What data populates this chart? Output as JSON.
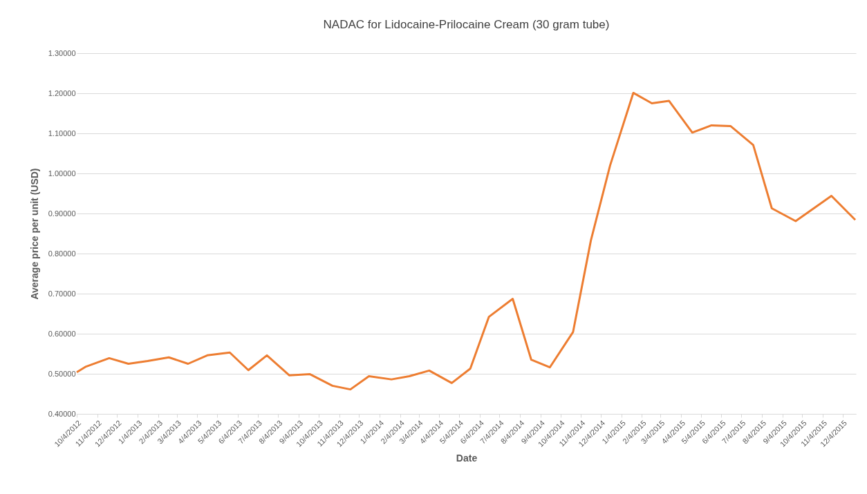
{
  "chart_data": {
    "type": "line",
    "title": "NADAC for Lidocaine-Prilocaine Cream (30 gram tube)",
    "xlabel": "Date",
    "ylabel": "Average price per unit (USD)",
    "x": [
      "2012-10-04",
      "2012-10-18",
      "2012-11-22",
      "2012-12-21",
      "2013-01-19",
      "2013-02-20",
      "2013-03-21",
      "2013-04-19",
      "2013-05-23",
      "2013-06-20",
      "2013-07-18",
      "2013-08-21",
      "2013-09-21",
      "2013-10-25",
      "2013-11-21",
      "2013-12-19",
      "2014-01-22",
      "2014-02-18",
      "2014-03-20",
      "2014-04-23",
      "2014-05-21",
      "2014-06-18",
      "2014-07-24",
      "2014-08-21",
      "2014-09-18",
      "2014-10-23",
      "2014-11-19",
      "2014-12-18",
      "2015-01-22",
      "2015-02-19",
      "2015-03-17",
      "2015-04-21",
      "2015-05-20",
      "2015-06-18",
      "2015-07-22",
      "2015-08-19",
      "2015-09-24",
      "2015-11-17",
      "2015-12-23"
    ],
    "series": [
      {
        "color": "#ed7d31",
        "values": [
          0.504,
          0.518,
          0.539,
          0.525,
          0.532,
          0.541,
          0.525,
          0.546,
          0.553,
          0.509,
          0.546,
          0.496,
          0.499,
          0.47,
          0.461,
          0.494,
          0.486,
          0.494,
          0.508,
          0.477,
          0.513,
          0.642,
          0.687,
          0.535,
          0.516,
          0.604,
          0.833,
          1.02,
          1.201,
          1.175,
          1.181,
          1.102,
          1.12,
          1.118,
          1.071,
          0.913,
          0.881,
          0.944,
          0.884
        ]
      }
    ],
    "xlim": [
      "2012-10-04",
      "2015-12-24"
    ],
    "xticks": [
      {
        "value": "2012-10-04",
        "label": "10/4/2012"
      },
      {
        "value": "2012-11-04",
        "label": "11/4/2012"
      },
      {
        "value": "2012-12-04",
        "label": "12/4/2012"
      },
      {
        "value": "2013-01-04",
        "label": "1/4/2013"
      },
      {
        "value": "2013-02-04",
        "label": "2/4/2013"
      },
      {
        "value": "2013-03-04",
        "label": "3/4/2013"
      },
      {
        "value": "2013-04-04",
        "label": "4/4/2013"
      },
      {
        "value": "2013-05-04",
        "label": "5/4/2013"
      },
      {
        "value": "2013-06-04",
        "label": "6/4/2013"
      },
      {
        "value": "2013-07-04",
        "label": "7/4/2013"
      },
      {
        "value": "2013-08-04",
        "label": "8/4/2013"
      },
      {
        "value": "2013-09-04",
        "label": "9/4/2013"
      },
      {
        "value": "2013-10-04",
        "label": "10/4/2013"
      },
      {
        "value": "2013-11-04",
        "label": "11/4/2013"
      },
      {
        "value": "2013-12-04",
        "label": "12/4/2013"
      },
      {
        "value": "2014-01-04",
        "label": "1/4/2014"
      },
      {
        "value": "2014-02-04",
        "label": "2/4/2014"
      },
      {
        "value": "2014-03-04",
        "label": "3/4/2014"
      },
      {
        "value": "2014-04-04",
        "label": "4/4/2014"
      },
      {
        "value": "2014-05-04",
        "label": "5/4/2014"
      },
      {
        "value": "2014-06-04",
        "label": "6/4/2014"
      },
      {
        "value": "2014-07-04",
        "label": "7/4/2014"
      },
      {
        "value": "2014-08-04",
        "label": "8/4/2014"
      },
      {
        "value": "2014-09-04",
        "label": "9/4/2014"
      },
      {
        "value": "2014-10-04",
        "label": "10/4/2014"
      },
      {
        "value": "2014-11-04",
        "label": "11/4/2014"
      },
      {
        "value": "2014-12-04",
        "label": "12/4/2014"
      },
      {
        "value": "2015-01-04",
        "label": "1/4/2015"
      },
      {
        "value": "2015-02-04",
        "label": "2/4/2015"
      },
      {
        "value": "2015-03-04",
        "label": "3/4/2015"
      },
      {
        "value": "2015-04-04",
        "label": "4/4/2015"
      },
      {
        "value": "2015-05-04",
        "label": "5/4/2015"
      },
      {
        "value": "2015-06-04",
        "label": "6/4/2015"
      },
      {
        "value": "2015-07-04",
        "label": "7/4/2015"
      },
      {
        "value": "2015-08-04",
        "label": "8/4/2015"
      },
      {
        "value": "2015-09-04",
        "label": "9/4/2015"
      },
      {
        "value": "2015-10-04",
        "label": "10/4/2015"
      },
      {
        "value": "2015-11-04",
        "label": "11/4/2015"
      },
      {
        "value": "2015-12-04",
        "label": "12/4/2015"
      }
    ],
    "ylim": [
      0.4,
      1.3
    ],
    "yticks": [
      {
        "value": 0.4,
        "label": "0.40000"
      },
      {
        "value": 0.5,
        "label": "0.50000"
      },
      {
        "value": 0.6,
        "label": "0.60000"
      },
      {
        "value": 0.7,
        "label": "0.70000"
      },
      {
        "value": 0.8,
        "label": "0.80000"
      },
      {
        "value": 0.9,
        "label": "0.90000"
      },
      {
        "value": 1.0,
        "label": "1.00000"
      },
      {
        "value": 1.1,
        "label": "1.10000"
      },
      {
        "value": 1.2,
        "label": "1.20000"
      },
      {
        "value": 1.3,
        "label": "1.30000"
      }
    ],
    "grid": "y",
    "marker": "none",
    "line_style": "solid"
  }
}
